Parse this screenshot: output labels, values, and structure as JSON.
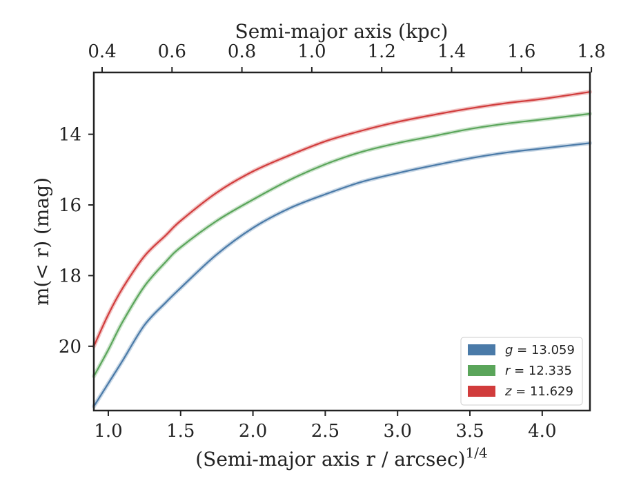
{
  "chart_data": {
    "type": "line",
    "xlabel_bottom": "(Semi-major axis r / arcsec)",
    "xlabel_bottom_exponent": "1/4",
    "xlabel_top": "Semi-major axis (kpc)",
    "ylabel": "m(< r) (mag)",
    "xlim": [
      0.9,
      4.33
    ],
    "ylim_inverted": [
      21.82,
      12.25
    ],
    "x_ticks": [
      1.0,
      1.5,
      2.0,
      2.5,
      3.0,
      3.5,
      4.0
    ],
    "x_tick_labels": [
      "1.0",
      "1.5",
      "2.0",
      "2.5",
      "3.0",
      "3.5",
      "4.0"
    ],
    "y_ticks": [
      14,
      16,
      18,
      20
    ],
    "y_tick_labels": [
      "14",
      "16",
      "18",
      "20"
    ],
    "top_ticks_kpc": [
      0.4,
      0.6,
      0.8,
      1.0,
      1.2,
      1.4,
      1.6,
      1.8
    ],
    "top_tick_labels": [
      "0.4",
      "0.6",
      "0.8",
      "1.0",
      "1.2",
      "1.4",
      "1.6",
      "1.8"
    ],
    "grid": false,
    "legend_position": "lower-right",
    "series": [
      {
        "name": "g = 13.059",
        "var": "g",
        "value": "13.059",
        "color": "#4a7aa8",
        "x": [
          0.9,
          1.0,
          1.1,
          1.25,
          1.4,
          1.5,
          1.75,
          2.0,
          2.25,
          2.5,
          2.75,
          3.0,
          3.25,
          3.5,
          3.75,
          4.0,
          4.33
        ],
        "y": [
          21.7,
          21.05,
          20.4,
          19.4,
          18.75,
          18.35,
          17.4,
          16.65,
          16.1,
          15.7,
          15.35,
          15.1,
          14.88,
          14.68,
          14.52,
          14.4,
          14.25
        ]
      },
      {
        "name": "r = 12.335",
        "var": "r",
        "value": "12.335",
        "color": "#5aa55a",
        "x": [
          0.9,
          1.0,
          1.1,
          1.25,
          1.4,
          1.5,
          1.75,
          2.0,
          2.25,
          2.5,
          2.75,
          3.0,
          3.25,
          3.5,
          3.75,
          4.0,
          4.33
        ],
        "y": [
          20.85,
          20.1,
          19.3,
          18.3,
          17.6,
          17.2,
          16.45,
          15.85,
          15.3,
          14.85,
          14.5,
          14.25,
          14.05,
          13.85,
          13.7,
          13.58,
          13.42
        ]
      },
      {
        "name": "z = 11.629",
        "var": "z",
        "value": "11.629",
        "color": "#d13c3c",
        "x": [
          0.9,
          1.0,
          1.1,
          1.25,
          1.4,
          1.5,
          1.75,
          2.0,
          2.25,
          2.5,
          2.75,
          3.0,
          3.25,
          3.5,
          3.75,
          4.0,
          4.33
        ],
        "y": [
          20.0,
          19.1,
          18.35,
          17.45,
          16.85,
          16.45,
          15.65,
          15.05,
          14.6,
          14.2,
          13.9,
          13.65,
          13.45,
          13.27,
          13.12,
          13.0,
          12.8
        ]
      }
    ]
  }
}
